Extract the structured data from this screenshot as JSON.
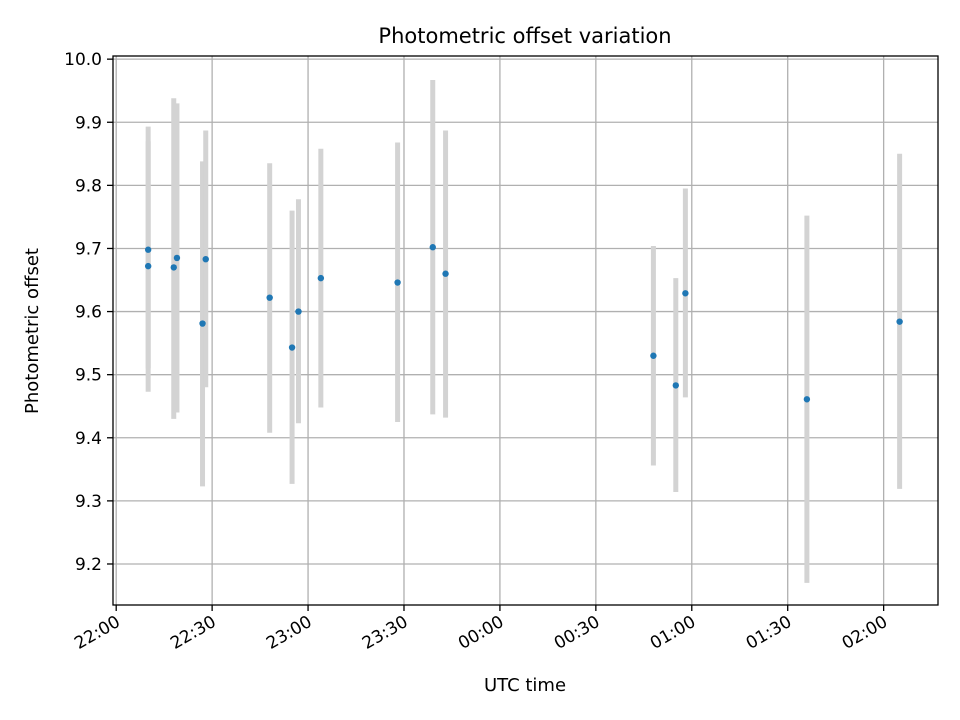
{
  "chart_data": {
    "type": "scatter",
    "title": "Photometric offset variation",
    "xlabel": "UTC time",
    "ylabel": "Photometric offset",
    "x_ticks": [
      "22:00",
      "22:30",
      "23:00",
      "23:30",
      "00:00",
      "00:30",
      "01:00",
      "01:30",
      "02:00"
    ],
    "y_ticks": [
      "9.2",
      "9.3",
      "9.4",
      "9.5",
      "9.6",
      "9.7",
      "9.8",
      "9.9",
      "10.0"
    ],
    "xlim": [
      "21:59",
      "02:17"
    ],
    "ylim": [
      9.135,
      10.005
    ],
    "grid": true,
    "marker_color": "#1f77b4",
    "errorbar_color": "#d3d3d3",
    "points": [
      {
        "t": "22:10",
        "y": 9.672,
        "lo": 9.51,
        "hi": 9.87
      },
      {
        "t": "22:10",
        "y": 9.698,
        "lo": 9.473,
        "hi": 9.893
      },
      {
        "t": "22:18",
        "y": 9.67,
        "lo": 9.43,
        "hi": 9.938
      },
      {
        "t": "22:19",
        "y": 9.685,
        "lo": 9.44,
        "hi": 9.93
      },
      {
        "t": "22:27",
        "y": 9.581,
        "lo": 9.323,
        "hi": 9.838
      },
      {
        "t": "22:28",
        "y": 9.683,
        "lo": 9.48,
        "hi": 9.887
      },
      {
        "t": "22:48",
        "y": 9.622,
        "lo": 9.408,
        "hi": 9.835
      },
      {
        "t": "22:55",
        "y": 9.543,
        "lo": 9.327,
        "hi": 9.76
      },
      {
        "t": "22:57",
        "y": 9.6,
        "lo": 9.423,
        "hi": 9.778
      },
      {
        "t": "23:04",
        "y": 9.653,
        "lo": 9.448,
        "hi": 9.858
      },
      {
        "t": "23:28",
        "y": 9.646,
        "lo": 9.425,
        "hi": 9.868
      },
      {
        "t": "23:39",
        "y": 9.702,
        "lo": 9.437,
        "hi": 9.967
      },
      {
        "t": "23:43",
        "y": 9.66,
        "lo": 9.432,
        "hi": 9.887
      },
      {
        "t": "00:48",
        "y": 9.53,
        "lo": 9.356,
        "hi": 9.704
      },
      {
        "t": "00:55",
        "y": 9.483,
        "lo": 9.314,
        "hi": 9.653
      },
      {
        "t": "00:58",
        "y": 9.629,
        "lo": 9.464,
        "hi": 9.795
      },
      {
        "t": "01:36",
        "y": 9.461,
        "lo": 9.17,
        "hi": 9.752
      },
      {
        "t": "02:05",
        "y": 9.584,
        "lo": 9.319,
        "hi": 9.85
      }
    ]
  }
}
